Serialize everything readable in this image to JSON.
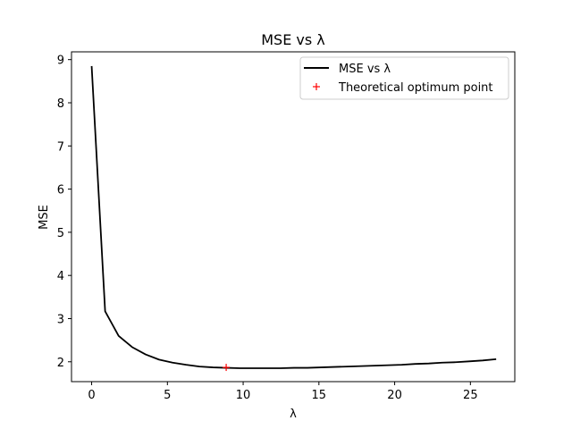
{
  "chart_data": {
    "type": "line",
    "title": "MSE vs λ",
    "xlabel": "λ",
    "ylabel": "MSE",
    "xlim": [
      -1.33,
      27.93
    ],
    "ylim": [
      1.54,
      9.18
    ],
    "xticks": [
      0,
      5,
      10,
      15,
      20,
      25
    ],
    "yticks": [
      2,
      3,
      4,
      5,
      6,
      7,
      8,
      9
    ],
    "grid": false,
    "legend_position": "top-right",
    "series": [
      {
        "name": "MSE vs λ",
        "color": "#000000",
        "style": "line",
        "x": [
          0,
          0.89,
          1.78,
          2.67,
          3.56,
          4.45,
          5.34,
          6.23,
          7.12,
          8.01,
          8.9,
          9.79,
          10.68,
          11.57,
          12.46,
          13.35,
          14.24,
          15.13,
          16.02,
          16.91,
          17.8,
          18.69,
          19.58,
          20.47,
          21.36,
          22.25,
          23.14,
          24.03,
          24.92,
          25.81,
          26.7
        ],
        "y": [
          8.85,
          3.17,
          2.6,
          2.34,
          2.17,
          2.05,
          1.98,
          1.93,
          1.89,
          1.87,
          1.86,
          1.85,
          1.85,
          1.85,
          1.85,
          1.86,
          1.86,
          1.87,
          1.88,
          1.89,
          1.9,
          1.91,
          1.92,
          1.93,
          1.95,
          1.96,
          1.98,
          1.99,
          2.01,
          2.03,
          2.06
        ]
      },
      {
        "name": "Theoretical optimum point",
        "color": "#ff0000",
        "style": "marker",
        "marker": "+",
        "x": [
          8.88
        ],
        "y": [
          1.87
        ]
      }
    ]
  }
}
